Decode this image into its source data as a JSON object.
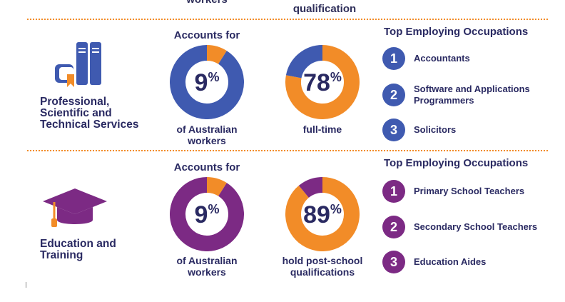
{
  "colors": {
    "blue": "#3f5ab0",
    "purple": "#7c2a84",
    "orange": "#f28c28",
    "navy": "#2a2a62"
  },
  "top_cutoff": {
    "left": "workers",
    "right": "qualification"
  },
  "chart_data": [
    {
      "type": "pie",
      "title": "Accounts for",
      "caption": "of Australian workers",
      "value_label": "9%",
      "slices": [
        {
          "value": 9,
          "color": "#f28c28"
        },
        {
          "value": 91,
          "color": "#3f5ab0"
        }
      ]
    },
    {
      "type": "pie",
      "caption": "full-time",
      "value_label": "78%",
      "slices": [
        {
          "value": 78,
          "color": "#f28c28"
        },
        {
          "value": 22,
          "color": "#3f5ab0"
        }
      ]
    },
    {
      "type": "pie",
      "title": "Accounts for",
      "caption": "of Australian workers",
      "value_label": "9%",
      "slices": [
        {
          "value": 9,
          "color": "#f28c28"
        },
        {
          "value": 91,
          "color": "#7c2a84"
        }
      ]
    },
    {
      "type": "pie",
      "caption": "hold post-school qualifications",
      "value_label": "89%",
      "slices": [
        {
          "value": 89,
          "color": "#f28c28"
        },
        {
          "value": 11,
          "color": "#7c2a84"
        }
      ]
    }
  ],
  "sections": [
    {
      "name": "Professional, Scientific and Technical Services",
      "icon": "books-icon",
      "occupations_title": "Top Employing Occupations",
      "occupations": [
        {
          "rank": "1",
          "label": "Accountants"
        },
        {
          "rank": "2",
          "label": "Software and Applications Programmers"
        },
        {
          "rank": "3",
          "label": "Solicitors"
        }
      ]
    },
    {
      "name": "Education and Training",
      "icon": "graduation-cap-icon",
      "occupations_title": "Top Employing Occupations",
      "occupations": [
        {
          "rank": "1",
          "label": "Primary School Teachers"
        },
        {
          "rank": "2",
          "label": "Secondary School Teachers"
        },
        {
          "rank": "3",
          "label": "Education Aides"
        }
      ]
    }
  ]
}
